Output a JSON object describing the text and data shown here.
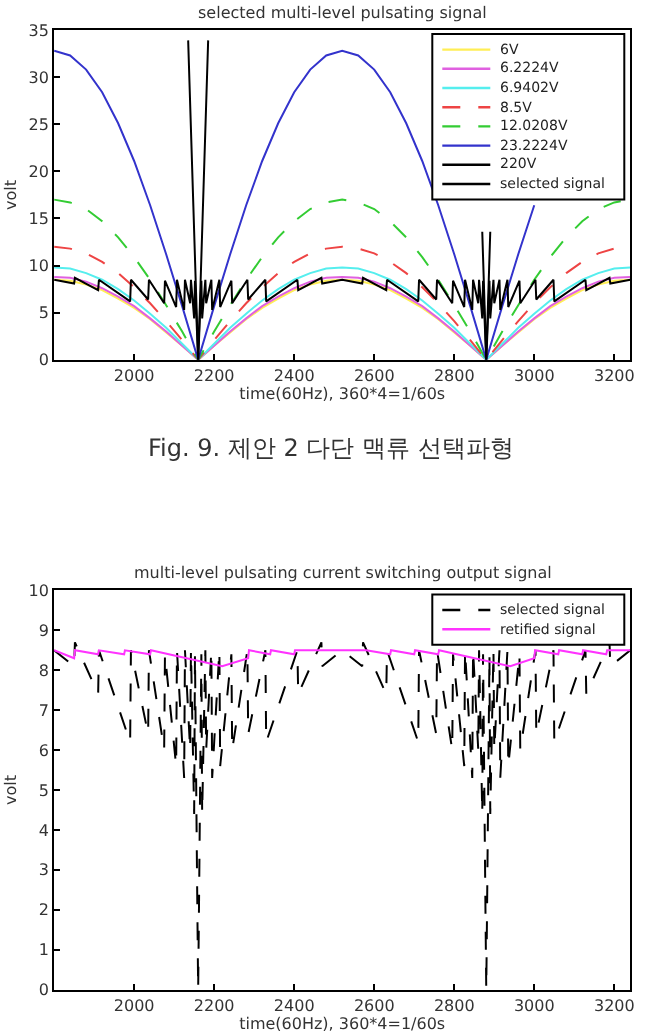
{
  "chart_data": [
    {
      "type": "line",
      "title": "selected multi-level pulsating signal",
      "xlabel": "time(60Hz), 360*4=1/60s",
      "ylabel": "volt",
      "xlim": [
        1800,
        3240
      ],
      "xticks": [
        2000,
        2200,
        2400,
        2600,
        2800,
        3000,
        3200
      ],
      "ylim": [
        0,
        35
      ],
      "yticks": [
        0,
        5,
        10,
        15,
        20,
        25,
        30,
        35
      ],
      "legend": "top right",
      "marker": "none",
      "annotations": [
        "Fig. 9. 제안 2 다단 맥류 선택파형"
      ],
      "x": [
        1800,
        1840,
        1880,
        1920,
        1960,
        2000,
        2040,
        2080,
        2120,
        2160,
        2200,
        2240,
        2280,
        2320,
        2360,
        2400,
        2440,
        2480,
        2520,
        2560,
        2600,
        2640,
        2680,
        2720,
        2760,
        2800,
        2840,
        2880,
        2920,
        2960,
        3000,
        3040,
        3080,
        3120,
        3160,
        3200,
        3240
      ],
      "series": [
        {
          "name": "6V",
          "color": "#ffee55",
          "line_style": "solid",
          "values": [
            8.5,
            8.4,
            8.0,
            7.4,
            6.5,
            5.5,
            4.3,
            2.9,
            1.5,
            0,
            1.5,
            2.9,
            4.3,
            5.5,
            6.5,
            7.4,
            8.0,
            8.4,
            8.5,
            8.4,
            8.0,
            7.4,
            6.5,
            5.5,
            4.3,
            2.9,
            1.5,
            0,
            1.5,
            2.9,
            4.3,
            5.5,
            6.5,
            7.4,
            8.0,
            8.4,
            8.5
          ]
        },
        {
          "name": "6.2224V",
          "color": "#e060e0",
          "line_style": "solid",
          "values": [
            8.8,
            8.7,
            8.3,
            7.6,
            6.7,
            5.7,
            4.4,
            3.0,
            1.5,
            0,
            1.5,
            3.0,
            4.4,
            5.7,
            6.7,
            7.6,
            8.3,
            8.7,
            8.8,
            8.7,
            8.3,
            7.6,
            6.7,
            5.7,
            4.4,
            3.0,
            1.5,
            0,
            1.5,
            3.0,
            4.4,
            5.7,
            6.7,
            7.6,
            8.3,
            8.7,
            8.8
          ]
        },
        {
          "name": "6.9402V",
          "color": "#55eeee",
          "line_style": "solid",
          "values": [
            9.8,
            9.7,
            9.2,
            8.5,
            7.5,
            6.3,
            4.9,
            3.4,
            1.7,
            0,
            1.7,
            3.4,
            4.9,
            6.3,
            7.5,
            8.5,
            9.2,
            9.7,
            9.8,
            9.7,
            9.2,
            8.5,
            7.5,
            6.3,
            4.9,
            3.4,
            1.7,
            0,
            1.7,
            3.4,
            4.9,
            6.3,
            7.5,
            8.5,
            9.2,
            9.7,
            9.8
          ]
        },
        {
          "name": "8.5V",
          "color": "#ee4444",
          "line_style": "dashed",
          "values": [
            12.0,
            11.8,
            11.3,
            10.4,
            9.2,
            7.7,
            6.0,
            4.1,
            2.1,
            0,
            2.1,
            4.1,
            6.0,
            7.7,
            9.2,
            10.4,
            11.3,
            11.8,
            12.0,
            11.8,
            11.3,
            10.4,
            9.2,
            7.7,
            6.0,
            4.1,
            2.1,
            0,
            2.1,
            4.1,
            6.0,
            7.7,
            9.2,
            10.4,
            11.3,
            11.8,
            12.0
          ]
        },
        {
          "name": "12.0208V",
          "color": "#33cc33",
          "line_style": "dashed",
          "values": [
            17.0,
            16.7,
            16.0,
            14.7,
            13.0,
            10.9,
            8.5,
            5.8,
            3.0,
            0,
            3.0,
            5.8,
            8.5,
            10.9,
            13.0,
            14.7,
            16.0,
            16.7,
            17.0,
            16.7,
            16.0,
            14.7,
            13.0,
            10.9,
            8.5,
            5.8,
            3.0,
            0,
            3.0,
            5.8,
            8.5,
            10.9,
            13.0,
            14.7,
            16.0,
            16.7,
            17.0
          ]
        },
        {
          "name": "23.2224V",
          "color": "#3333cc",
          "line_style": "solid",
          "values": [
            32.8,
            32.3,
            30.8,
            28.4,
            25.1,
            21.1,
            16.4,
            11.2,
            5.7,
            0,
            5.7,
            11.2,
            16.4,
            21.1,
            25.1,
            28.4,
            30.8,
            32.3,
            32.8,
            32.3,
            30.8,
            28.4,
            25.1,
            21.1,
            16.4,
            11.2,
            5.7,
            0,
            5.7,
            11.2,
            16.4,
            null,
            null,
            null,
            null,
            null,
            null
          ]
        },
        {
          "name": "220V",
          "color": "#000000",
          "line_style": "solid",
          "x": [
            2135,
            2148,
            2160,
            2172,
            2185,
            2500,
            2870,
            2880,
            2890
          ],
          "values": [
            33.9,
            16.3,
            0,
            16.3,
            33.9,
            null,
            13.6,
            0,
            13.6
          ]
        },
        {
          "name": "selected signal",
          "color": "#000000",
          "line_style": "solid",
          "x": [
            1800,
            1850,
            1852,
            1910,
            1912,
            1990,
            1992,
            2035,
            2037,
            2075,
            2077,
            2105,
            2107,
            2125,
            2127,
            2140,
            2142,
            2150,
            2152,
            2158,
            2160,
            2162,
            2168,
            2170,
            2178,
            2180,
            2193,
            2195,
            2213,
            2215,
            2243,
            2245,
            2283,
            2285,
            2328,
            2330,
            2408,
            2410,
            2468,
            2470,
            2520,
            2570,
            2572,
            2630,
            2632,
            2710,
            2712,
            2755,
            2757,
            2795,
            2797,
            2825,
            2827,
            2845,
            2847,
            2860,
            2862,
            2870,
            2872,
            2878,
            2880,
            2882,
            2888,
            2890,
            2898,
            2900,
            2913,
            2915,
            2933,
            2935,
            2963,
            2965,
            3003,
            3005,
            3048,
            3050,
            3128,
            3130,
            3188,
            3190,
            3240
          ],
          "values": [
            8.5,
            8.1,
            8.7,
            7.4,
            8.5,
            6.2,
            8.5,
            6.4,
            8.5,
            6.0,
            8.4,
            5.6,
            8.5,
            5.3,
            8.5,
            6.0,
            8.5,
            4.4,
            8.4,
            2.0,
            0,
            2.0,
            8.4,
            4.4,
            8.5,
            6.0,
            8.5,
            5.3,
            8.5,
            5.6,
            8.4,
            6.0,
            8.5,
            6.4,
            8.5,
            6.2,
            8.5,
            7.4,
            8.7,
            8.1,
            8.5,
            8.1,
            8.7,
            7.4,
            8.5,
            6.2,
            8.5,
            6.4,
            8.5,
            6.0,
            8.4,
            5.6,
            8.5,
            5.3,
            8.5,
            6.0,
            8.5,
            4.4,
            8.4,
            2.0,
            0,
            2.0,
            8.4,
            4.4,
            8.5,
            6.0,
            8.5,
            5.3,
            8.5,
            5.6,
            8.4,
            6.0,
            8.5,
            6.4,
            8.5,
            6.2,
            8.5,
            7.4,
            8.7,
            8.1,
            8.5
          ]
        }
      ]
    },
    {
      "type": "line",
      "title": "multi-level pulsating current switching output signal",
      "xlabel": "time(60Hz), 360*4=1/60s",
      "ylabel": "volt",
      "xlim": [
        1800,
        3240
      ],
      "xticks": [
        2000,
        2200,
        2400,
        2600,
        2800,
        3000,
        3200
      ],
      "ylim": [
        0,
        10
      ],
      "yticks": [
        0,
        1,
        2,
        3,
        4,
        5,
        6,
        7,
        8,
        9,
        10
      ],
      "legend": "top right",
      "marker": "none",
      "series": [
        {
          "name": "selected signal",
          "color": "#000000",
          "line_style": "dashed",
          "x": [
            1800,
            1850,
            1852,
            1910,
            1912,
            1990,
            1992,
            2035,
            2037,
            2075,
            2077,
            2105,
            2107,
            2125,
            2127,
            2140,
            2142,
            2150,
            2152,
            2158,
            2160,
            2162,
            2168,
            2170,
            2178,
            2180,
            2193,
            2195,
            2213,
            2215,
            2243,
            2245,
            2283,
            2285,
            2328,
            2330,
            2408,
            2410,
            2468,
            2470,
            2520,
            2570,
            2572,
            2630,
            2632,
            2710,
            2712,
            2755,
            2757,
            2795,
            2797,
            2825,
            2827,
            2845,
            2847,
            2860,
            2862,
            2870,
            2872,
            2878,
            2880,
            2882,
            2888,
            2890,
            2898,
            2900,
            2913,
            2915,
            2933,
            2935,
            2963,
            2965,
            3003,
            3005,
            3048,
            3050,
            3128,
            3130,
            3188,
            3190,
            3240
          ],
          "values": [
            8.5,
            8.1,
            8.7,
            7.4,
            8.5,
            6.2,
            8.5,
            6.4,
            8.5,
            6.0,
            8.4,
            5.6,
            8.5,
            5.3,
            8.5,
            6.0,
            8.5,
            4.4,
            8.4,
            2.0,
            0,
            2.0,
            8.4,
            4.4,
            8.5,
            6.0,
            8.5,
            5.3,
            8.5,
            5.6,
            8.4,
            6.0,
            8.5,
            6.4,
            8.5,
            6.2,
            8.5,
            7.4,
            8.7,
            8.1,
            8.5,
            8.1,
            8.7,
            7.4,
            8.5,
            6.2,
            8.5,
            6.4,
            8.5,
            6.0,
            8.4,
            5.6,
            8.5,
            5.3,
            8.5,
            6.0,
            8.5,
            4.4,
            8.4,
            2.0,
            0,
            2.0,
            8.4,
            4.4,
            8.5,
            6.0,
            8.5,
            5.3,
            8.5,
            5.6,
            8.4,
            6.0,
            8.5,
            6.4,
            8.5,
            6.2,
            8.5,
            7.4,
            8.7,
            8.1,
            8.5
          ]
        },
        {
          "name": "retified signal",
          "color": "#ff33ff",
          "line_style": "solid",
          "x": [
            1800,
            1850,
            1852,
            1910,
            1912,
            1975,
            1977,
            2040,
            2042,
            2220,
            2285,
            2287,
            2340,
            2342,
            2400,
            2402,
            2460,
            2520,
            2580,
            2640,
            2642,
            2700,
            2702,
            2760,
            2762,
            2940,
            3000,
            3002,
            3060,
            3062,
            3120,
            3122,
            3180,
            3182,
            3240
          ],
          "values": [
            8.5,
            8.3,
            8.5,
            8.4,
            8.5,
            8.4,
            8.5,
            8.4,
            8.5,
            8.1,
            8.3,
            8.5,
            8.4,
            8.5,
            8.4,
            8.5,
            8.5,
            8.5,
            8.5,
            8.4,
            8.5,
            8.4,
            8.5,
            8.4,
            8.5,
            8.1,
            8.3,
            8.5,
            8.4,
            8.5,
            8.4,
            8.5,
            8.4,
            8.5,
            8.5
          ]
        }
      ]
    }
  ]
}
